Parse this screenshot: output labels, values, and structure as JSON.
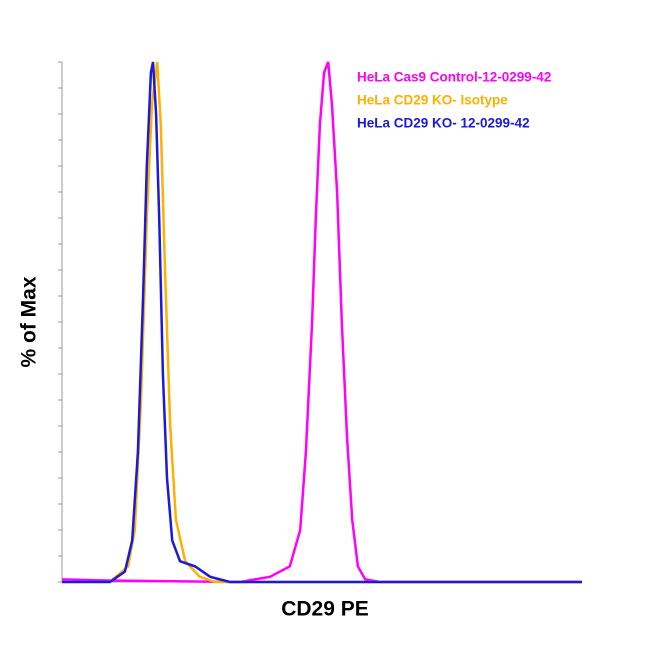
{
  "chart_data": {
    "type": "line",
    "x_label": "CD29 PE",
    "y_label": "% of Max",
    "xlim": [
      0,
      1000
    ],
    "ylim": [
      0,
      100
    ],
    "yticks": [
      0,
      5,
      10,
      15,
      20,
      25,
      30,
      35,
      40,
      45,
      50,
      55,
      60,
      65,
      70,
      75,
      80,
      85,
      90,
      95,
      100
    ],
    "series": [
      {
        "name": "HeLa Cas9 Control-12-0299-42",
        "color": "#ff00ff",
        "x": [
          0,
          73,
          342,
          400,
          438,
          458,
          469,
          481,
          488,
          496,
          504,
          512,
          519,
          529,
          538,
          548,
          558,
          569,
          583,
          612,
          1000
        ],
        "values": [
          0.5,
          0.3,
          0,
          1,
          3,
          10,
          25,
          50,
          70,
          88,
          98,
          100,
          92,
          75,
          50,
          28,
          12,
          3,
          0.5,
          0,
          0
        ]
      },
      {
        "name": "HeLa CD29 KO- Isotype",
        "color": "#ffb000",
        "x": [
          92,
          127,
          140,
          152,
          163,
          173,
          183,
          190,
          198,
          208,
          219,
          237,
          265,
          294,
          1000
        ],
        "values": [
          0,
          3,
          10,
          35,
          70,
          92,
          100,
          88,
          60,
          30,
          12,
          4,
          1,
          0,
          0
        ]
      },
      {
        "name": "HeLa CD29 KO- 12-0299-42",
        "color": "#1a1adc",
        "x": [
          0,
          92,
          121,
          135,
          146,
          156,
          163,
          171,
          175,
          181,
          187,
          194,
          202,
          212,
          227,
          256,
          285,
          323,
          1000
        ],
        "values": [
          0,
          0,
          2,
          8,
          25,
          55,
          80,
          98,
          100,
          90,
          70,
          40,
          20,
          8,
          4,
          3,
          1,
          0,
          0
        ]
      }
    ]
  }
}
